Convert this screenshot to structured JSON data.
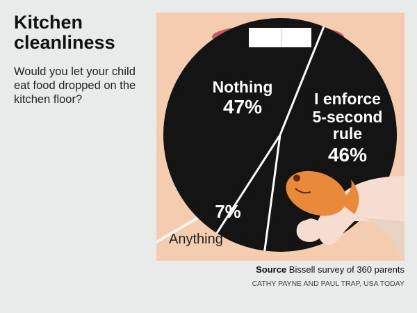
{
  "title": "Kitchen cleanliness",
  "question": "Would you let your child eat food dropped on the kitchen floor?",
  "chart_data": {
    "type": "pie",
    "categories": [
      "Nothing",
      "I enforce 5-second rule",
      "Anything"
    ],
    "values": [
      47,
      46,
      7
    ],
    "labels": [
      "47%",
      "46%",
      "7%"
    ],
    "start": "top"
  },
  "source": {
    "label": "Source",
    "text": "Bissell survey of 360 parents"
  },
  "credit": "CATHY PAYNE AND PAUL TRAP, USA TODAY",
  "colors": {
    "background": "#e9eaea",
    "panel": "#f4cdb0",
    "plate": "#141414",
    "rim": "#c85568",
    "fish": "#e9893a",
    "skin": "#f6ddcf"
  }
}
